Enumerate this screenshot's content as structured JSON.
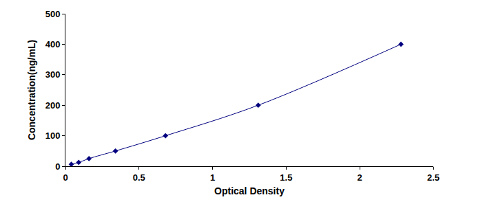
{
  "chart_data": {
    "type": "line",
    "x_label": "Optical Density",
    "y_label": "Concentration(ng/mL)",
    "x": [
      0.04,
      0.09,
      0.16,
      0.34,
      0.68,
      1.31,
      2.28
    ],
    "values": [
      6.25,
      12.5,
      25,
      50,
      100,
      200,
      400
    ],
    "color": "#00007f",
    "marker": "diamond",
    "line_style": "solid",
    "xlim": [
      0,
      2.5
    ],
    "xticks": [
      0,
      0.5,
      1,
      1.5,
      2,
      2.5
    ],
    "ylim": [
      0,
      500
    ],
    "yticks": [
      0,
      100,
      200,
      300,
      400,
      500
    ],
    "grid": false
  }
}
